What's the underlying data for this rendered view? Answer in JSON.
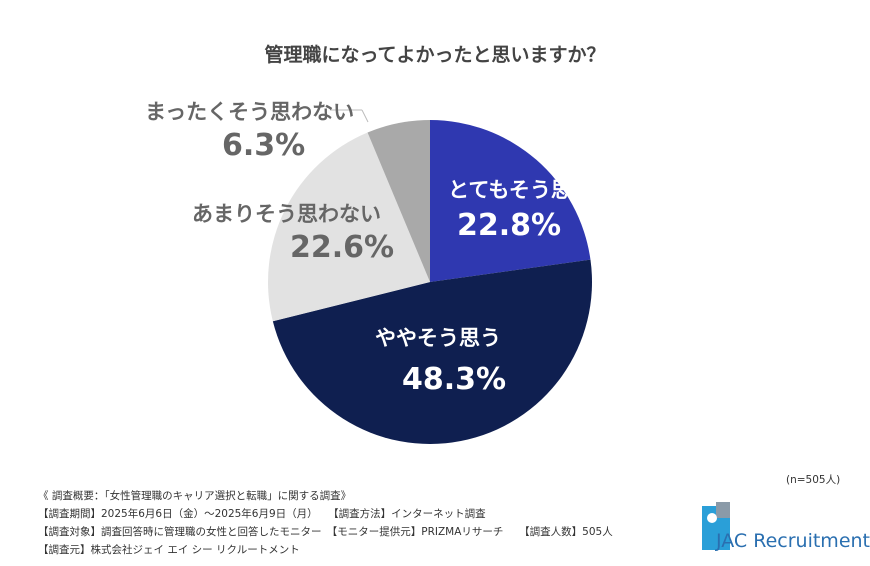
{
  "chart_data": {
    "type": "pie",
    "title": "管理職になってよかったと思いますか？",
    "slices": [
      {
        "label": "とてもそう思う",
        "value": 22.8,
        "display": "22.8%",
        "color": "#2f38b0"
      },
      {
        "label": "ややそう思う",
        "value": 48.3,
        "display": "48.3%",
        "color": "#0f1f50"
      },
      {
        "label": "あまりそう思わない",
        "value": 22.6,
        "display": "22.6%",
        "color": "#e2e2e2"
      },
      {
        "label": "まったくそう思わない",
        "value": 6.3,
        "display": "6.3%",
        "color": "#a9a9a9"
      }
    ],
    "start": "12 o'clock",
    "direction": "clockwise",
    "note": "(n=505人)"
  },
  "footer": {
    "summary": "《 調査概要：「女性管理職のキャリア選択と転職」に関する調査》",
    "line1": "【調査期間】2025年6月6日（金）～2025年6月9日（月）　　【調査方法】インターネット調査",
    "line2": "【調査対象】調査回答時に管理職の女性と回答したモニター　【モニター提供元】PRIZMAリサーチ　　【調査人数】505人",
    "line3": "【調査元】株式会社ジェイ エイ シー リクルートメント"
  },
  "logo": {
    "text": "JAC Recruitment"
  }
}
